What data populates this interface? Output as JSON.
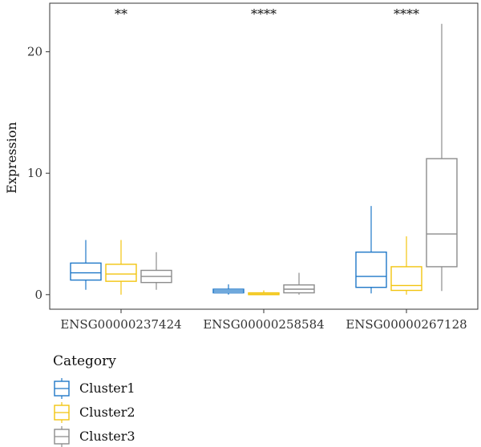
{
  "chart_data": {
    "type": "box",
    "title": "",
    "xlabel": "",
    "ylabel": "Expression",
    "ylim": [
      -1.2,
      24
    ],
    "yticks": [
      0,
      10,
      20
    ],
    "grid": false,
    "categories": [
      "ENSG00000237424",
      "ENSG00000258584",
      "ENSG00000267128"
    ],
    "significance": [
      "**",
      "****",
      "****"
    ],
    "legend": {
      "title": "Category",
      "placement": "bottom-left"
    },
    "series": [
      {
        "name": "Cluster1",
        "color": "#1f78c8",
        "boxes": [
          {
            "min": 0.4,
            "q1": 1.2,
            "median": 1.8,
            "q3": 2.6,
            "max": 4.5
          },
          {
            "min": 0.0,
            "q1": 0.15,
            "median": 0.3,
            "q3": 0.45,
            "max": 0.85
          },
          {
            "min": 0.1,
            "q1": 0.6,
            "median": 1.5,
            "q3": 3.5,
            "max": 7.3
          }
        ]
      },
      {
        "name": "Cluster2",
        "color": "#f2c40f",
        "boxes": [
          {
            "min": 0.0,
            "q1": 1.1,
            "median": 1.7,
            "q3": 2.5,
            "max": 4.5
          },
          {
            "min": 0.0,
            "q1": 0.0,
            "median": 0.05,
            "q3": 0.15,
            "max": 0.35
          },
          {
            "min": 0.0,
            "q1": 0.35,
            "median": 0.75,
            "q3": 2.3,
            "max": 4.8
          }
        ]
      },
      {
        "name": "Cluster3",
        "color": "#8c8c8c",
        "boxes": [
          {
            "min": 0.4,
            "q1": 1.0,
            "median": 1.5,
            "q3": 2.0,
            "max": 3.5
          },
          {
            "min": 0.0,
            "q1": 0.15,
            "median": 0.45,
            "q3": 0.8,
            "max": 1.8
          },
          {
            "min": 0.3,
            "q1": 2.3,
            "median": 5.0,
            "q3": 11.2,
            "max": 22.3
          }
        ]
      }
    ]
  }
}
